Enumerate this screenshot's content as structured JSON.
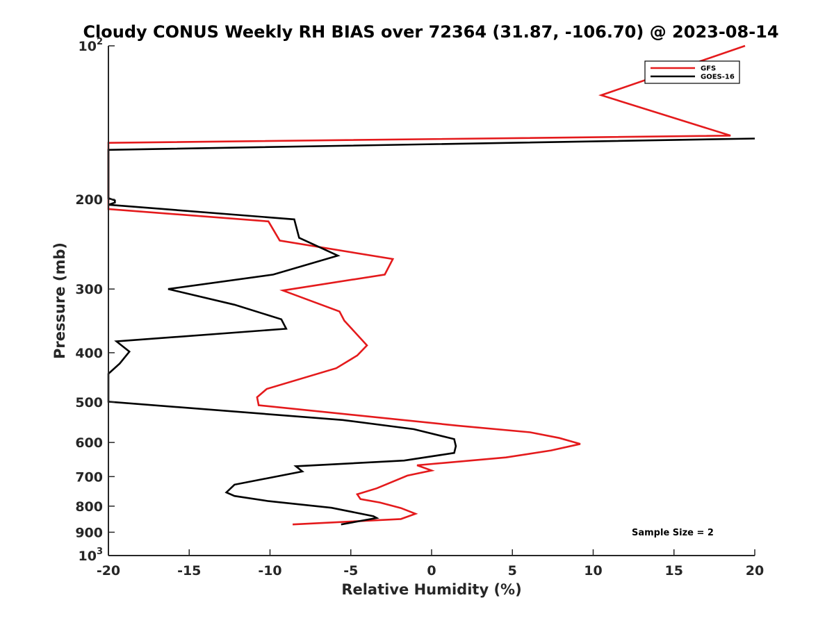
{
  "chart_data": {
    "type": "line",
    "title": "Cloudy CONUS Weekly RH BIAS over 72364 (31.87, -106.70) @ 2023-08-14",
    "xlabel": "Relative Humidity (%)",
    "ylabel": "Pressure (mb)",
    "xlim": [
      -20,
      20
    ],
    "ylim": [
      100,
      1000
    ],
    "y_scale": "log",
    "y_reversed": true,
    "grid": false,
    "legend_position": "top-right",
    "x_ticks": [
      -20,
      -15,
      -10,
      -5,
      0,
      5,
      10,
      15,
      20
    ],
    "y_ticks": [
      {
        "value": 100,
        "base": "10",
        "exp": "2"
      },
      {
        "value": 200,
        "text": "200"
      },
      {
        "value": 300,
        "text": "300"
      },
      {
        "value": 400,
        "text": "400"
      },
      {
        "value": 500,
        "text": "500"
      },
      {
        "value": 600,
        "text": "600"
      },
      {
        "value": 700,
        "text": "700"
      },
      {
        "value": 800,
        "text": "800"
      },
      {
        "value": 900,
        "text": "900"
      },
      {
        "value": 1000,
        "base": "10",
        "exp": "3"
      }
    ],
    "series": [
      {
        "name": "GFS",
        "color": "#e41a1c",
        "points": [
          [
            19.4,
            100
          ],
          [
            10.5,
            125
          ],
          [
            18.5,
            150
          ],
          [
            -20,
            155
          ],
          [
            -20,
            209
          ],
          [
            -10.1,
            221
          ],
          [
            -9.4,
            241
          ],
          [
            -2.4,
            262
          ],
          [
            -2.9,
            281
          ],
          [
            -9.2,
            302
          ],
          [
            -5.7,
            332
          ],
          [
            -5.4,
            346
          ],
          [
            -4,
            387
          ],
          [
            -4.6,
            405
          ],
          [
            -5.9,
            429
          ],
          [
            -10.2,
            471
          ],
          [
            -10.8,
            489
          ],
          [
            -10.7,
            507
          ],
          [
            1.6,
            556
          ],
          [
            6.1,
            573
          ],
          [
            7.9,
            588
          ],
          [
            9.2,
            604
          ],
          [
            7.4,
            622
          ],
          [
            4.6,
            642
          ],
          [
            -0.9,
            665
          ],
          [
            0,
            681
          ],
          [
            -1.5,
            697
          ],
          [
            -3.4,
            738
          ],
          [
            -4.6,
            758
          ],
          [
            -4.4,
            775
          ],
          [
            -3.2,
            787
          ],
          [
            -1.9,
            807
          ],
          [
            -1,
            828
          ],
          [
            -1.9,
            848
          ],
          [
            -8.6,
            869
          ]
        ]
      },
      {
        "name": "GOES-16",
        "color": "#000000",
        "points": [
          [
            20,
            152
          ],
          [
            -20,
            160
          ],
          [
            -20,
            199
          ],
          [
            -19.6,
            201
          ],
          [
            -19.6,
            203
          ],
          [
            -20,
            205
          ],
          [
            -8.5,
            219
          ],
          [
            -8.2,
            238
          ],
          [
            -5.8,
            258
          ],
          [
            -9.8,
            281
          ],
          [
            -16.3,
            300
          ],
          [
            -12.2,
            322
          ],
          [
            -9.3,
            344
          ],
          [
            -9,
            359
          ],
          [
            -19.5,
            380
          ],
          [
            -18.7,
            398
          ],
          [
            -19.3,
            420
          ],
          [
            -19.9,
            437
          ],
          [
            -20,
            440
          ],
          [
            -20,
            499
          ],
          [
            -5.5,
            542
          ],
          [
            -1.1,
            565
          ],
          [
            1.4,
            591
          ],
          [
            1.5,
            610
          ],
          [
            1.4,
            629
          ],
          [
            -1.7,
            651
          ],
          [
            -8.4,
            668
          ],
          [
            -8,
            684
          ],
          [
            -12.2,
            726
          ],
          [
            -12.7,
            752
          ],
          [
            -12.2,
            764
          ],
          [
            -10.1,
            782
          ],
          [
            -6.2,
            806
          ],
          [
            -3.6,
            837
          ],
          [
            -3.4,
            844
          ],
          [
            -5.6,
            869
          ]
        ]
      }
    ],
    "annotation": "Sample Size = 2"
  }
}
